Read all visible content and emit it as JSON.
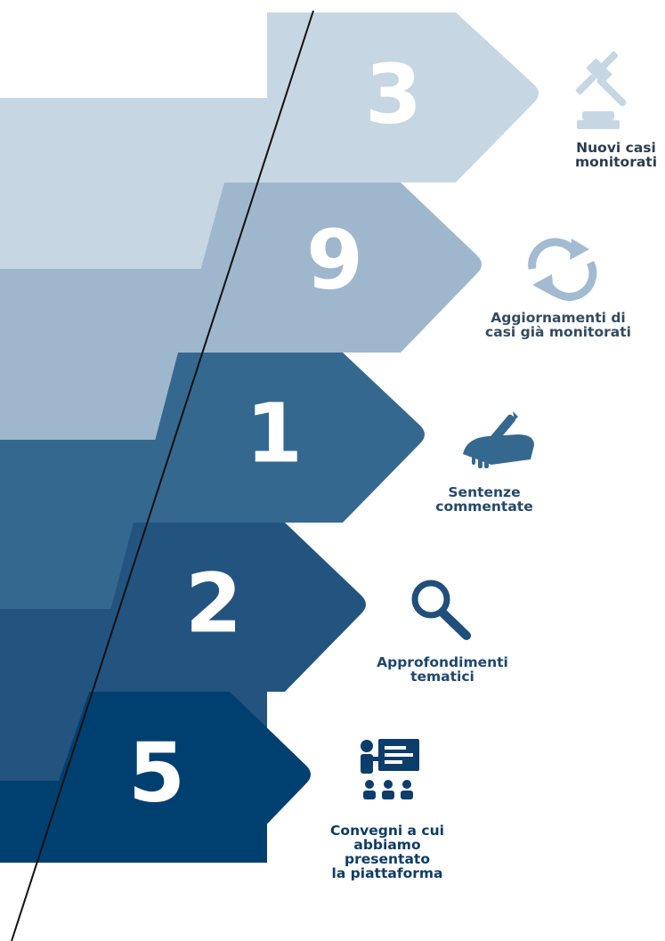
{
  "colors": {
    "tier1": "#c7d6e3",
    "tier2": "#9fb7cc",
    "tier3": "#35688f",
    "tier4": "#23547f",
    "tier5": "#004070",
    "divider": "#111111",
    "text1": "#2c3d4d",
    "text2": "#344a5e",
    "text3": "#24486b",
    "text4": "#1d476f",
    "text5": "#0f3b66"
  },
  "items": [
    {
      "value": "3",
      "caption": [
        "Nuovi casi",
        "monitorati"
      ],
      "icon": "gavel-icon"
    },
    {
      "value": "9",
      "caption": [
        "Aggiornamenti di",
        "casi già monitorati"
      ],
      "icon": "refresh-icon"
    },
    {
      "value": "1",
      "caption": [
        "Sentenze",
        "commentate"
      ],
      "icon": "pen-writing-icon"
    },
    {
      "value": "2",
      "caption": [
        "Approfondimenti",
        "tematici"
      ],
      "icon": "search-icon"
    },
    {
      "value": "5",
      "caption": [
        "Convegni a cui",
        "abbiamo",
        "presentato",
        "la piattaforma"
      ],
      "icon": "presentation-icon"
    }
  ]
}
